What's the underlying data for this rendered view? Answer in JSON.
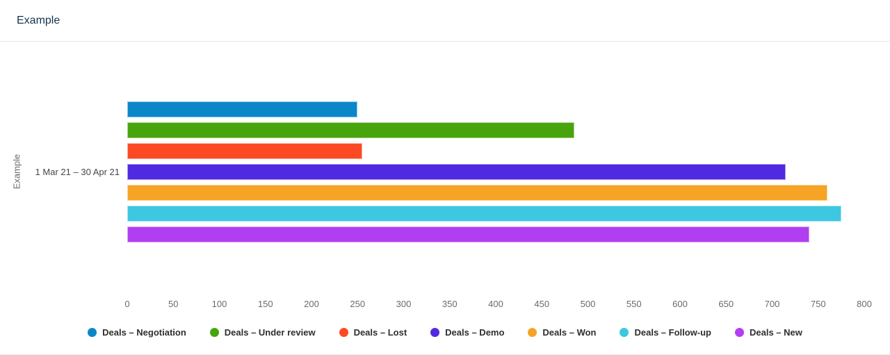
{
  "header": {
    "title": "Example"
  },
  "chart_data": {
    "type": "bar",
    "orientation": "horizontal",
    "y_axis_title": "Example",
    "category": "1 Mar 21 – 30 Apr 21",
    "xlabel": "",
    "ylabel": "Example",
    "xlim": [
      0,
      800
    ],
    "x_ticks": [
      0,
      50,
      100,
      150,
      200,
      250,
      300,
      350,
      400,
      450,
      500,
      550,
      600,
      650,
      700,
      750,
      800
    ],
    "grid": false,
    "legend_position": "bottom-center",
    "series": [
      {
        "name": "Deals – Negotiation",
        "value": 250,
        "color": "#0b87c9"
      },
      {
        "name": "Deals – Under review",
        "value": 485,
        "color": "#48a40c"
      },
      {
        "name": "Deals – Lost",
        "value": 255,
        "color": "#fb4a23"
      },
      {
        "name": "Deals – Demo",
        "value": 715,
        "color": "#4f2ae0"
      },
      {
        "name": "Deals – Won",
        "value": 760,
        "color": "#f5a425"
      },
      {
        "name": "Deals – Follow-up",
        "value": 775,
        "color": "#3dc7e1"
      },
      {
        "name": "Deals – New",
        "value": 740,
        "color": "#b23ef2"
      }
    ]
  }
}
